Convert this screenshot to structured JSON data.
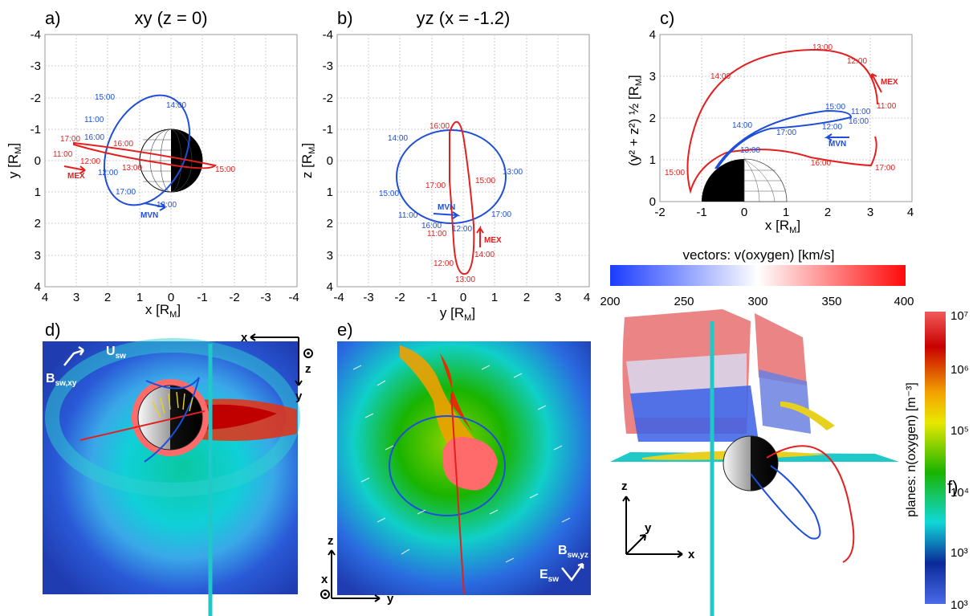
{
  "panels": {
    "a": {
      "letter": "a)",
      "title": "xy (z = 0)",
      "xlabel": "x [R",
      "xsub": "M",
      "ylabel": "y [R",
      "ysub": "M",
      "xticks": [
        "4",
        "3",
        "2",
        "1",
        "0",
        "-1",
        "-2",
        "-3",
        "-4"
      ],
      "yticks": [
        "-4",
        "-3",
        "-2",
        "-1",
        "0",
        "1",
        "2",
        "3",
        "4"
      ],
      "mvn_times": [
        "15:00",
        "14:00",
        "11:00",
        "16:00",
        "12:00",
        "17:00",
        "13:00"
      ],
      "mex_times": [
        "17:00",
        "16:00",
        "11:00",
        "12:00",
        "13:00",
        "15:00"
      ],
      "mvn": "MVN",
      "mex": "MEX"
    },
    "b": {
      "letter": "b)",
      "title": "yz (x = -1.2)",
      "xlabel": "y [R",
      "xsub": "M",
      "ylabel": "z [R",
      "ysub": "M",
      "xticks": [
        "-4",
        "-3",
        "-2",
        "-1",
        "0",
        "1",
        "2",
        "3",
        "4"
      ],
      "yticks": [
        "-4",
        "-3",
        "-2",
        "-1",
        "0",
        "1",
        "2",
        "3",
        "4"
      ],
      "mvn_times": [
        "14:00",
        "15:00",
        "11:00",
        "16:00",
        "12:00",
        "13:00",
        "17:00"
      ],
      "mex_times": [
        "16:00",
        "17:00",
        "15:00",
        "11:00",
        "14:00",
        "12:00",
        "13:00"
      ],
      "mvn": "MVN",
      "mex": "MEX"
    },
    "c": {
      "letter": "c)",
      "xlabel": "x [R",
      "xsub": "M",
      "ylabel": "(y² + z²) ½ [R",
      "ysub": "M",
      "xticks": [
        "-2",
        "-1",
        "0",
        "1",
        "2",
        "3",
        "4"
      ],
      "yticks": [
        "0",
        "1",
        "2",
        "3",
        "4"
      ],
      "mex_times": [
        "13:00",
        "12:00",
        "14:00",
        "11:00",
        "15:00",
        "16:00",
        "17:00"
      ],
      "mvn_times": [
        "15:00",
        "11:00",
        "12:00",
        "16:00",
        "14:00",
        "17:00",
        "13:00"
      ],
      "mvn": "MVN",
      "mex": "MEX"
    },
    "d": {
      "letter": "d)",
      "usw": "U",
      "usw_sub": "sw",
      "bsw": "B",
      "bsw_sub": "sw,xy",
      "ax1": "x",
      "ax2": "z",
      "ax3": "y"
    },
    "e": {
      "letter": "e)",
      "bsw": "B",
      "bsw_sub": "sw,yz",
      "esw": "E",
      "esw_sub": "sw",
      "ax1": "z",
      "ax2": "x",
      "ax3": "y"
    },
    "f": {
      "letter": "f)",
      "ax_z": "z",
      "ax_y": "y",
      "ax_x": "x"
    }
  },
  "colorbar_vectors": {
    "title": "vectors: v(oxygen) [km/s]",
    "ticks": [
      "200",
      "250",
      "300",
      "350",
      "400"
    ],
    "colors": [
      "#1f3fff",
      "#ffffff",
      "#ff1010"
    ]
  },
  "colorbar_planes": {
    "title": "planes: n(oxygen) [m⁻³]",
    "ticks": [
      "10⁷",
      "10⁶",
      "10⁵",
      "10⁴",
      "10³",
      "10³"
    ]
  },
  "colors": {
    "mvn": "#1f4fd8",
    "mex": "#e32020"
  }
}
